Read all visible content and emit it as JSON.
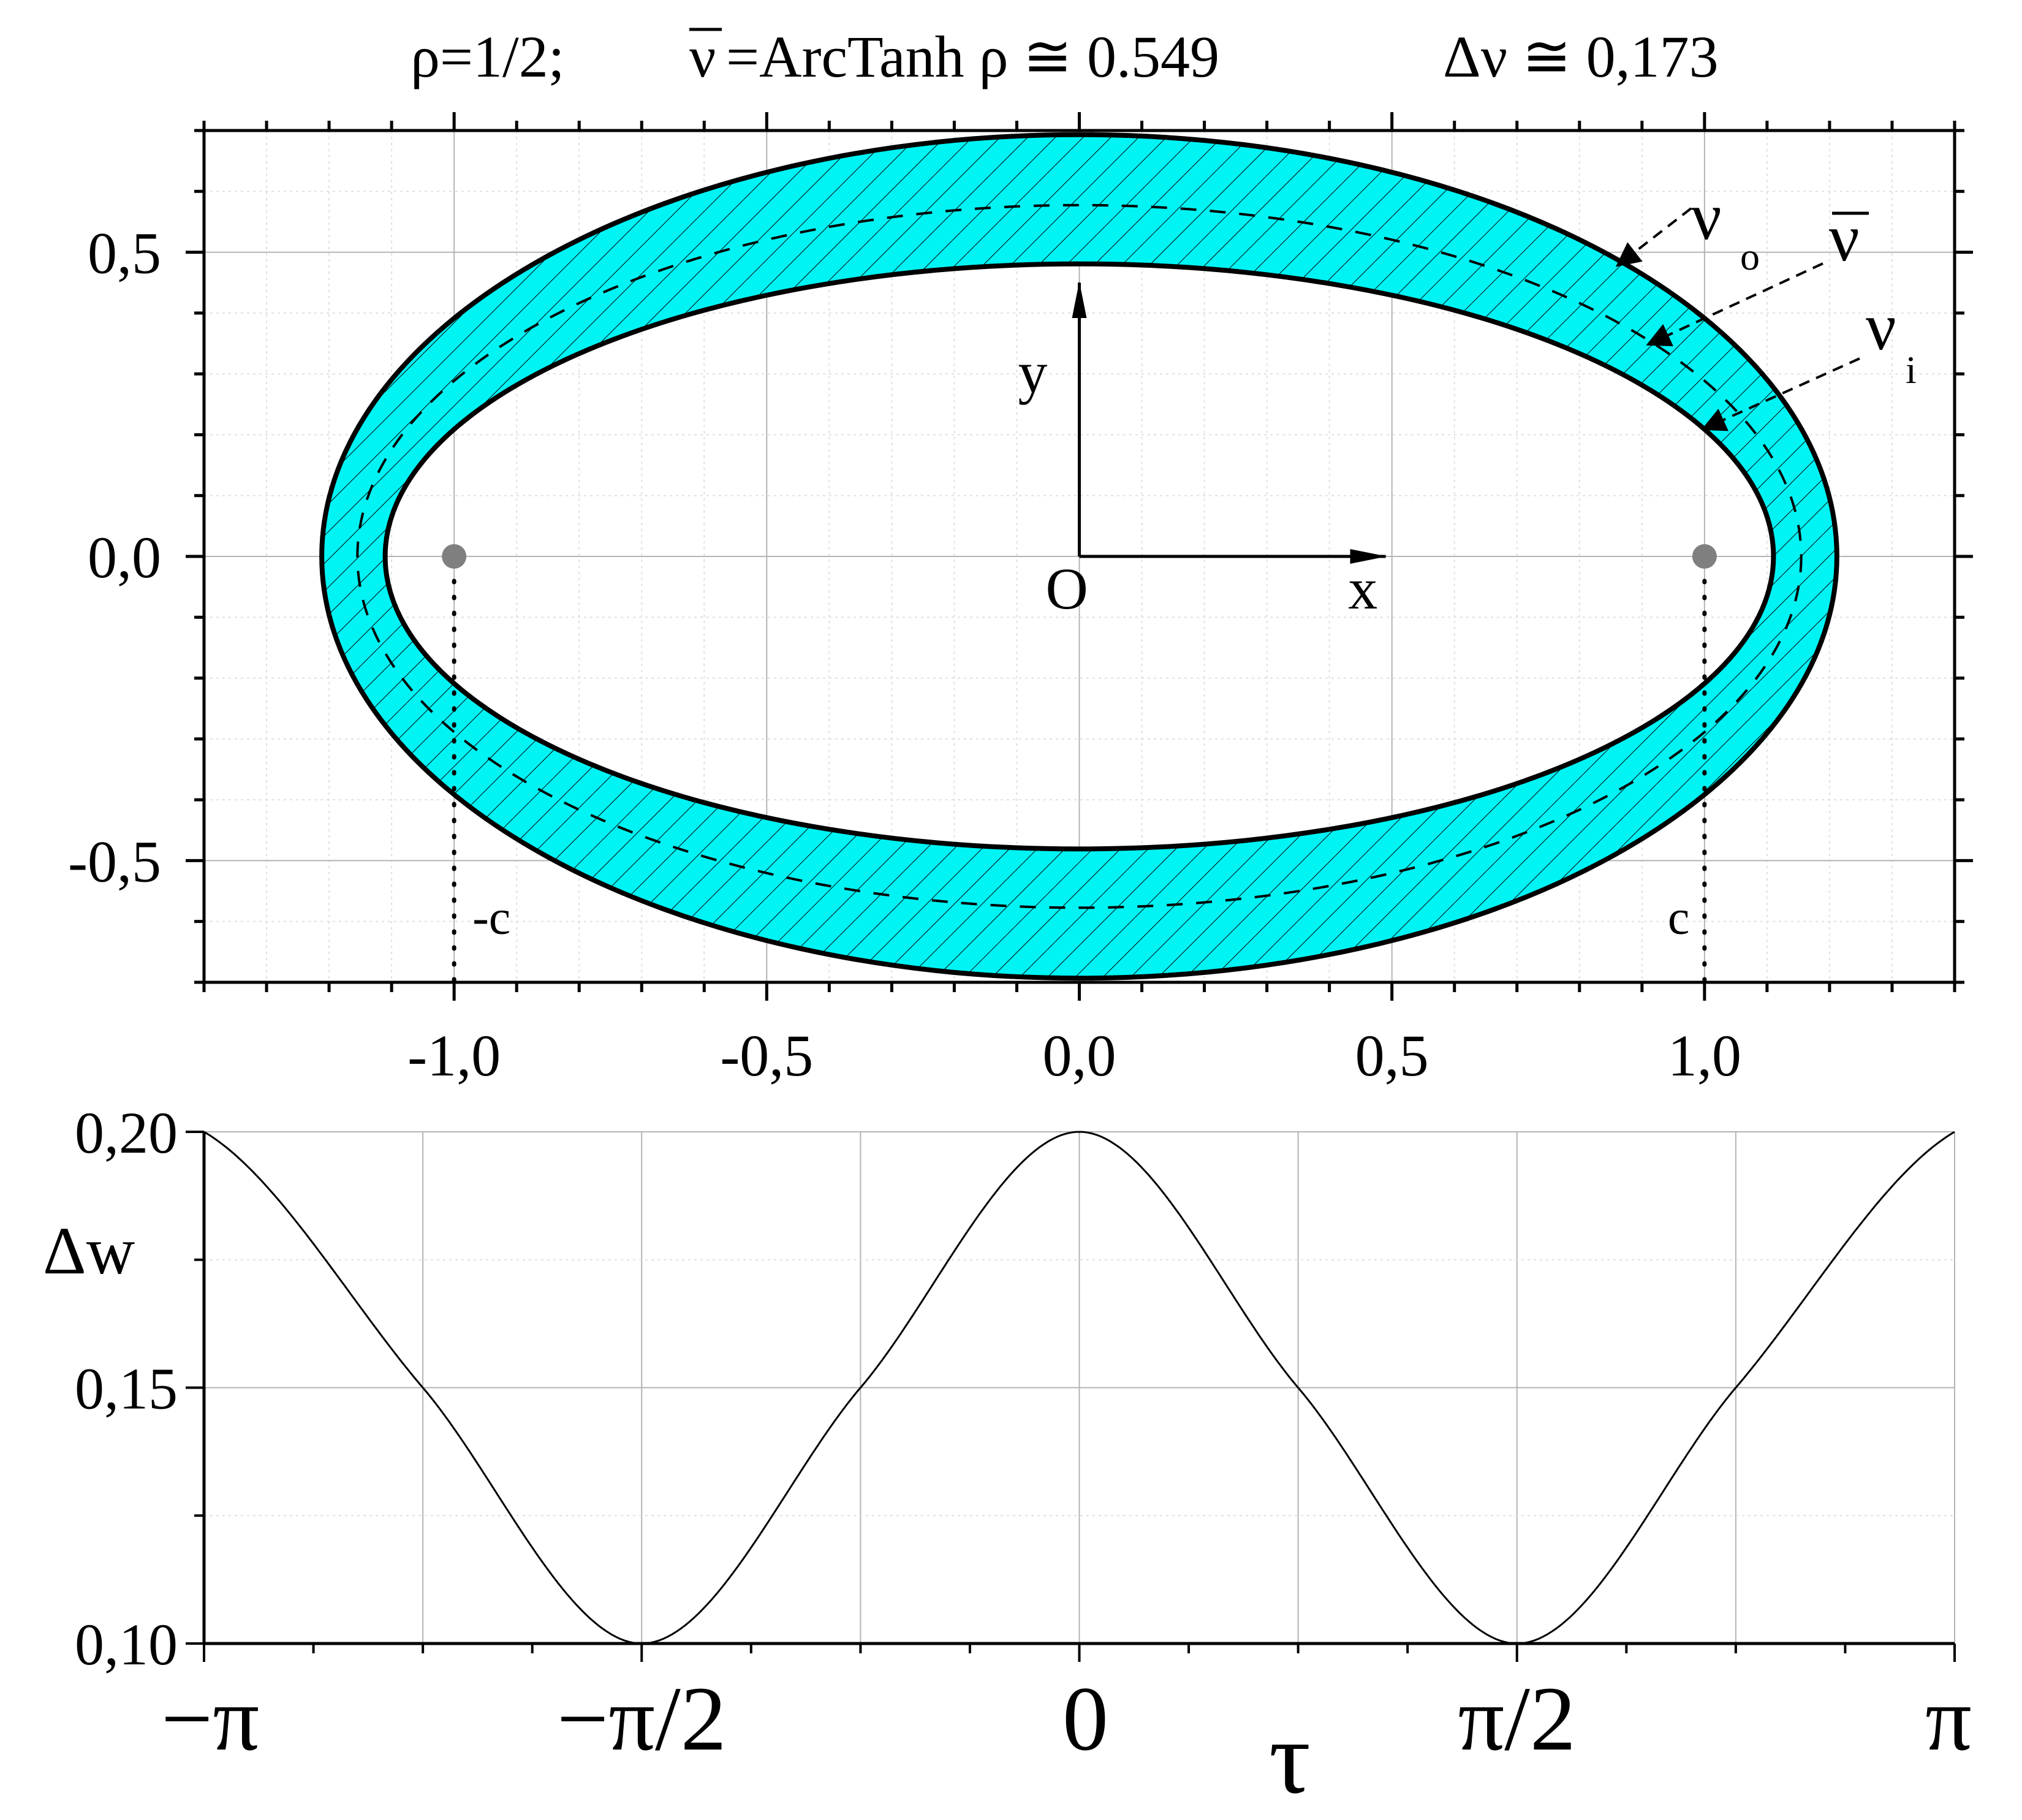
{
  "title": {
    "rho": "ρ=1/2;",
    "nubar_sym": "ν",
    "nubar_expr": "=ArcTanh ρ ≅ 0.549",
    "dnu": "Δν ≅ 0,173"
  },
  "colors": {
    "ring_fill": "#00f4f4",
    "line": "#000000",
    "grid": "#b4b4b4",
    "minor_grid": "#e0e0e0",
    "focus": "#7f7f7f"
  },
  "chart_data": [
    {
      "type": "line",
      "name": "elliptic-ring",
      "description_free": true,
      "x": [
        -1.2,
        -1.1,
        -1.0,
        -0.5,
        0.0,
        0.5,
        1.0,
        1.1,
        1.2
      ],
      "series": [
        {
          "name": "ν_o",
          "curve": "ellipse",
          "a": 1.2117,
          "b": 0.6932
        },
        {
          "name": "ν̄",
          "curve": "ellipse",
          "a": 1.1547,
          "b": 0.5774,
          "dashed": true
        },
        {
          "name": "ν_i",
          "curve": "ellipse",
          "a": 1.1103,
          "b": 0.4808
        }
      ],
      "foci": [
        [
          -1.0,
          0.0
        ],
        [
          1.0,
          0.0
        ]
      ],
      "focus_labels": [
        "-c",
        "c"
      ],
      "xlim": [
        -1.4,
        1.4
      ],
      "ylim": [
        -0.7,
        0.7
      ],
      "xticks": [
        -1.0,
        -0.5,
        0.0,
        0.5,
        1.0
      ],
      "xtick_labels": [
        "-1,0",
        "-0,5",
        "0,0",
        "0,5",
        "1,0"
      ],
      "yticks": [
        -0.5,
        0.0,
        0.5
      ],
      "ytick_labels": [
        "-0,5",
        "0,0",
        "0,5"
      ],
      "axis_labels": {
        "origin": "O",
        "x": "x",
        "y": "y"
      },
      "curve_labels": {
        "outer": "ν",
        "outer_sub": "o",
        "mean": "ν",
        "inner": "ν",
        "inner_sub": "i"
      },
      "grid": true
    },
    {
      "type": "line",
      "name": "delta-w",
      "x": [
        -3.1416,
        -2.3562,
        -1.5708,
        -0.7854,
        0.0,
        0.7854,
        1.5708,
        2.3562,
        3.1416
      ],
      "series": [
        {
          "name": "Δw",
          "values": [
            0.2,
            0.15,
            0.1,
            0.15,
            0.2,
            0.15,
            0.1,
            0.15,
            0.2
          ]
        }
      ],
      "xlim": [
        -3.1416,
        3.1416
      ],
      "ylim": [
        0.1,
        0.2
      ],
      "xticks": [
        -3.1416,
        -1.5708,
        0.0,
        1.5708,
        3.1416
      ],
      "xtick_labels": [
        "−π",
        "−π/2",
        "0",
        "π/2",
        "π"
      ],
      "yticks": [
        0.1,
        0.15,
        0.2
      ],
      "ytick_labels": [
        "0,10",
        "0,15",
        "0,20"
      ],
      "ylabel": "Δw",
      "xlabel": "τ",
      "grid": true
    }
  ]
}
